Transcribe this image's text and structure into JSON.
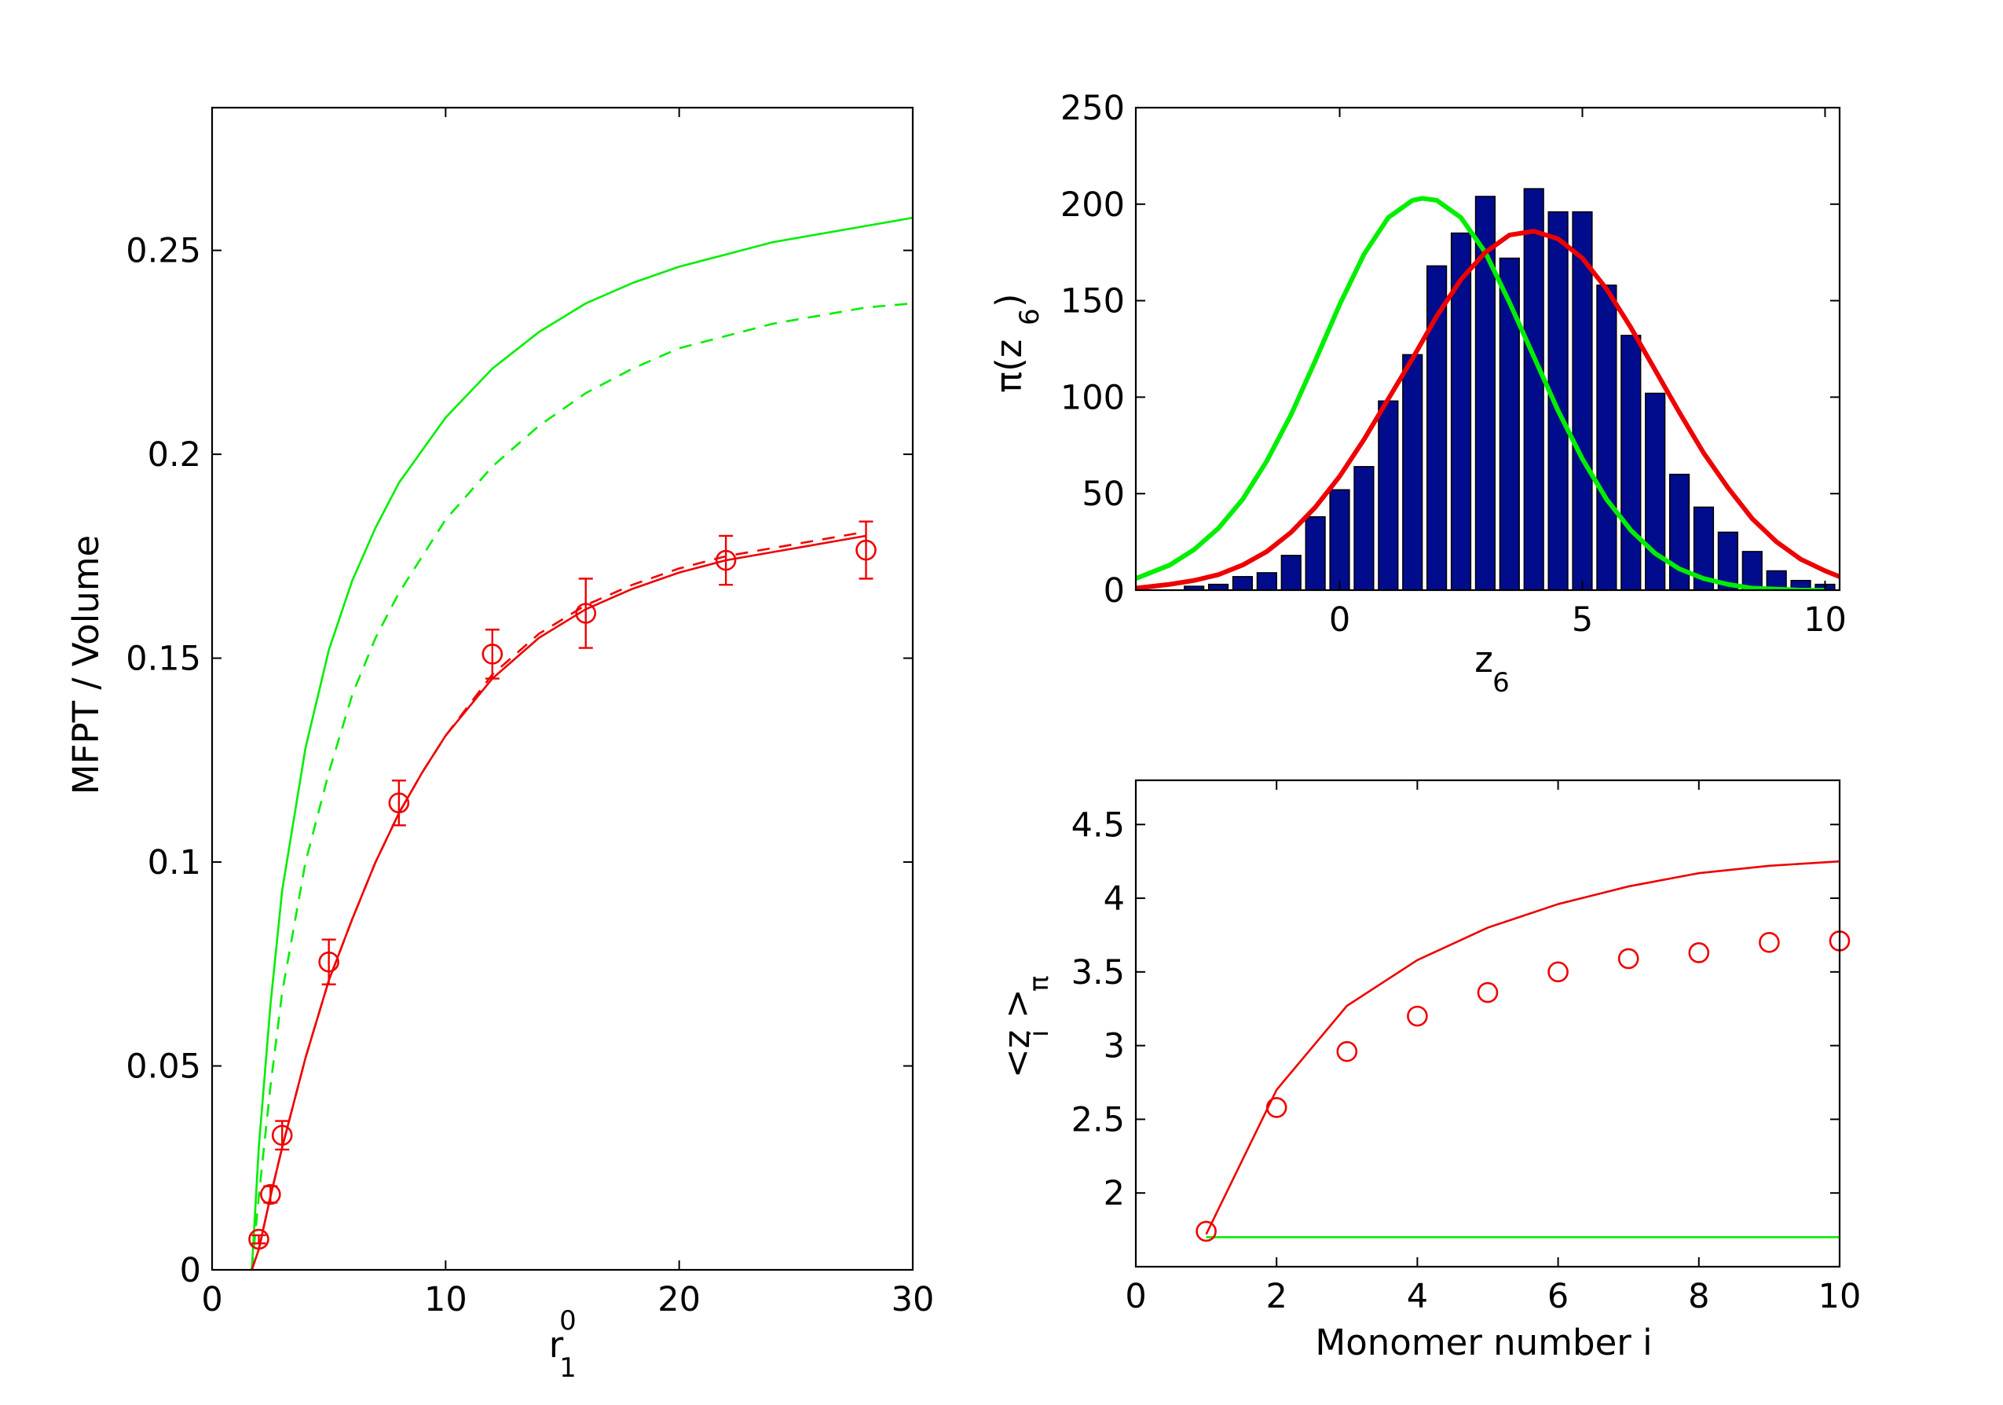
{
  "chart_data": [
    {
      "type": "line",
      "xlabel": "r",
      "xlabel_sub": "1",
      "xlabel_sup": "0",
      "ylabel": "MFPT / Volume",
      "xlim": [
        0,
        30
      ],
      "ylim": [
        0,
        0.285
      ],
      "xticks": [
        0,
        10,
        20,
        30
      ],
      "xtick_labels": [
        "0",
        "10",
        "20",
        "30"
      ],
      "yticks": [
        0,
        0.05,
        0.1,
        0.15,
        0.2,
        0.25
      ],
      "ytick_labels": [
        "0",
        "0.05",
        "0.1",
        "0.15",
        "0.2",
        "0.25"
      ],
      "grid": false,
      "series": [
        {
          "style": "solid",
          "color": "#00ee00",
          "x": [
            1.7,
            2,
            2.5,
            3,
            4,
            5,
            6,
            7,
            8,
            10,
            12,
            14,
            16,
            18,
            20,
            22,
            24,
            26,
            28,
            30
          ],
          "y": [
            0,
            0.03,
            0.065,
            0.093,
            0.128,
            0.152,
            0.169,
            0.182,
            0.193,
            0.209,
            0.221,
            0.23,
            0.237,
            0.242,
            0.246,
            0.249,
            0.252,
            0.254,
            0.256,
            0.258
          ]
        },
        {
          "style": "dashed",
          "color": "#00ee00",
          "x": [
            1.7,
            2,
            2.5,
            3,
            4,
            5,
            6,
            7,
            8,
            10,
            12,
            14,
            16,
            18,
            20,
            22,
            24,
            26,
            28,
            30
          ],
          "y": [
            0,
            0.018,
            0.045,
            0.068,
            0.1,
            0.122,
            0.141,
            0.155,
            0.166,
            0.184,
            0.197,
            0.207,
            0.215,
            0.221,
            0.226,
            0.229,
            0.232,
            0.234,
            0.236,
            0.237
          ]
        },
        {
          "style": "solid",
          "color": "#ee0000",
          "x": [
            1.7,
            2,
            2.5,
            3,
            4,
            5,
            6,
            7,
            8,
            9,
            10,
            12,
            14,
            16,
            18,
            20,
            22,
            24,
            26,
            28
          ],
          "y": [
            0,
            0.005,
            0.018,
            0.03,
            0.052,
            0.071,
            0.086,
            0.1,
            0.112,
            0.122,
            0.131,
            0.145,
            0.155,
            0.162,
            0.167,
            0.171,
            0.174,
            0.176,
            0.178,
            0.18
          ]
        },
        {
          "style": "dashed",
          "color": "#ee0000",
          "x": [
            1.7,
            2,
            2.5,
            3,
            4,
            5,
            6,
            7,
            8,
            9,
            10,
            12,
            14,
            16,
            18,
            20,
            22,
            24,
            26,
            28
          ],
          "y": [
            0,
            0.005,
            0.018,
            0.03,
            0.052,
            0.071,
            0.086,
            0.1,
            0.112,
            0.122,
            0.131,
            0.146,
            0.156,
            0.163,
            0.168,
            0.172,
            0.175,
            0.177,
            0.179,
            0.181
          ]
        },
        {
          "style": "markers-errorbars",
          "marker": "circle",
          "color": "#ee0000",
          "x": [
            2,
            2.5,
            3,
            5,
            8,
            12,
            16,
            22,
            28
          ],
          "y": [
            0.0075,
            0.0185,
            0.033,
            0.0755,
            0.1145,
            0.151,
            0.161,
            0.174,
            0.1765
          ],
          "err": [
            0.001,
            0.002,
            0.0035,
            0.0055,
            0.0055,
            0.006,
            0.0085,
            0.006,
            0.007
          ]
        }
      ]
    },
    {
      "type": "bar",
      "xlabel": "z",
      "xlabel_sub": "6",
      "ylabel": "π(z",
      "ylabel_sub": "6",
      "ylabel_end": ")",
      "xlim": [
        -4.2,
        10.3
      ],
      "ylim": [
        0,
        250
      ],
      "xticks": [
        0,
        5,
        10
      ],
      "xtick_labels": [
        "0",
        "5",
        "10"
      ],
      "yticks": [
        0,
        50,
        100,
        150,
        200,
        250
      ],
      "ytick_labels": [
        "0",
        "50",
        "100",
        "150",
        "200",
        "250"
      ],
      "bar_color": "#000c8c",
      "bar_width": 0.4,
      "categories": [
        -3,
        -2.5,
        -2,
        -1.5,
        -1,
        -0.5,
        0,
        0.5,
        1,
        1.5,
        2,
        2.5,
        3,
        3.5,
        4,
        4.5,
        5,
        5.5,
        6,
        6.5,
        7,
        7.5,
        8,
        8.5,
        9,
        9.5,
        10
      ],
      "values": [
        2,
        3,
        7,
        9,
        18,
        38,
        52,
        64,
        98,
        122,
        168,
        185,
        204,
        172,
        208,
        196,
        196,
        158,
        132,
        102,
        60,
        43,
        30,
        20,
        10,
        5,
        3
      ],
      "series": [
        {
          "style": "curve",
          "color": "#00ee00",
          "x": [
            -4.2,
            -3.5,
            -3,
            -2.5,
            -2,
            -1.5,
            -1,
            -0.5,
            0,
            0.5,
            1,
            1.5,
            1.7,
            2,
            2.5,
            3,
            3.5,
            4,
            4.5,
            5,
            5.5,
            6,
            6.5,
            7,
            7.5,
            8,
            8.5,
            9,
            9.5,
            10
          ],
          "y": [
            6,
            13,
            21,
            32,
            47,
            67,
            91,
            119,
            148,
            174,
            193,
            202,
            203,
            202,
            193,
            175,
            149,
            121,
            93,
            68,
            47,
            31,
            19,
            11,
            6,
            3,
            1,
            0.5,
            0,
            0
          ]
        },
        {
          "style": "curve",
          "color": "#ee0000",
          "x": [
            -4.2,
            -3.5,
            -3,
            -2.5,
            -2,
            -1.5,
            -1,
            -0.5,
            0,
            0.5,
            1,
            1.5,
            2,
            2.5,
            3,
            3.5,
            4,
            4.5,
            5,
            5.5,
            6,
            6.5,
            7,
            7.5,
            8,
            8.5,
            9,
            9.5,
            10,
            10.3
          ],
          "y": [
            1,
            3,
            5,
            8,
            13,
            20,
            30,
            43,
            59,
            78,
            99,
            120,
            142,
            161,
            175,
            184,
            186,
            182,
            172,
            156,
            136,
            114,
            92,
            71,
            53,
            37,
            25,
            16,
            10,
            7
          ]
        }
      ]
    },
    {
      "type": "line",
      "xlabel": "Monomer number i",
      "ylabel_left": "<z",
      "ylabel_sub_i": "i",
      "ylabel_right": ">",
      "ylabel_sub_pi": "π",
      "xlim": [
        0,
        10
      ],
      "ylim": [
        1.5,
        4.8
      ],
      "xticks": [
        0,
        2,
        4,
        6,
        8,
        10
      ],
      "xtick_labels": [
        "0",
        "2",
        "4",
        "6",
        "8",
        "10"
      ],
      "yticks": [
        2,
        2.5,
        3,
        3.5,
        4,
        4.5
      ],
      "ytick_labels": [
        "2",
        "2.5",
        "3",
        "3.5",
        "4",
        "4.5"
      ],
      "series": [
        {
          "style": "solid",
          "color": "#ee0000",
          "x": [
            1,
            2,
            3,
            4,
            5,
            6,
            7,
            8,
            9,
            10
          ],
          "y": [
            1.72,
            2.7,
            3.27,
            3.58,
            3.8,
            3.96,
            4.08,
            4.17,
            4.22,
            4.25
          ]
        },
        {
          "style": "solid",
          "color": "#00ee00",
          "x": [
            1,
            10
          ],
          "y": [
            1.7,
            1.7
          ]
        },
        {
          "style": "markers",
          "marker": "circle",
          "color": "#ee0000",
          "x": [
            1,
            2,
            3,
            4,
            5,
            6,
            7,
            8,
            9,
            10
          ],
          "y": [
            1.74,
            2.58,
            2.96,
            3.2,
            3.36,
            3.5,
            3.59,
            3.63,
            3.7,
            3.71
          ]
        }
      ]
    }
  ]
}
